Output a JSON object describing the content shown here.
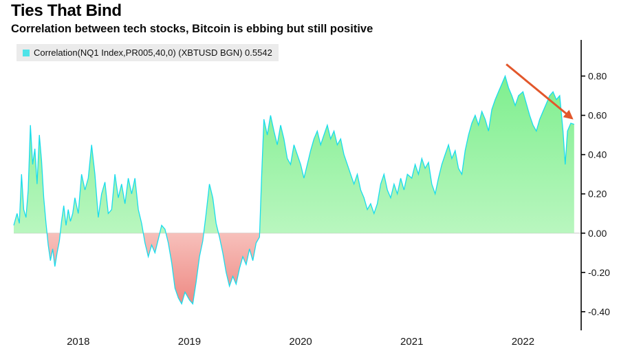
{
  "header": {
    "title": "Ties That Bind",
    "subtitle": "Correlation between tech stocks, Bitcoin is ebbing but still positive"
  },
  "legend": {
    "swatch_color": "#4fe3e8",
    "label": "Correlation(NQ1 Index,PR005,40,0) (XBTUSD BGN) 0.5542",
    "background": "#ebebeb"
  },
  "chart_data": {
    "type": "area",
    "title": "Ties That Bind",
    "subtitle": "Correlation between tech stocks, Bitcoin is ebbing but still positive",
    "xlabel": "",
    "ylabel": "",
    "xlim": [
      2017.42,
      2022.48
    ],
    "ylim": [
      -0.495,
      0.97
    ],
    "xticks": [
      2018,
      2019,
      2020,
      2021,
      2022
    ],
    "yticks": [
      0.8,
      0.6,
      0.4,
      0.2,
      0.0,
      -0.2,
      -0.4
    ],
    "grid": false,
    "legend_position": "top-left",
    "colors": {
      "line": "#18dcec",
      "area_positive_top": "#7eef8e",
      "area_positive_bottom": "#b9f6bf",
      "area_negative_top": "#f7c0bb",
      "area_negative_bottom": "#ee8a84",
      "annotation_arrow": "#e2572b",
      "axis_line": "#000000",
      "zero_line": "#c8c8c8",
      "text": "#151515"
    },
    "annotation": {
      "type": "arrow",
      "from": {
        "x": 2021.85,
        "y": 0.86
      },
      "to": {
        "x": 2022.44,
        "y": 0.585
      }
    },
    "series": [
      {
        "name": "Correlation(NQ1 Index,PR005,40,0) (XBTUSD BGN)",
        "last_value": 0.5542,
        "points": [
          [
            2017.42,
            0.04
          ],
          [
            2017.45,
            0.1
          ],
          [
            2017.47,
            0.05
          ],
          [
            2017.49,
            0.3
          ],
          [
            2017.51,
            0.12
          ],
          [
            2017.53,
            0.08
          ],
          [
            2017.55,
            0.22
          ],
          [
            2017.57,
            0.55
          ],
          [
            2017.59,
            0.35
          ],
          [
            2017.61,
            0.43
          ],
          [
            2017.63,
            0.25
          ],
          [
            2017.65,
            0.5
          ],
          [
            2017.67,
            0.37
          ],
          [
            2017.69,
            0.18
          ],
          [
            2017.71,
            0.05
          ],
          [
            2017.73,
            -0.06
          ],
          [
            2017.75,
            -0.14
          ],
          [
            2017.77,
            -0.08
          ],
          [
            2017.79,
            -0.17
          ],
          [
            2017.81,
            -0.1
          ],
          [
            2017.83,
            -0.04
          ],
          [
            2017.85,
            0.06
          ],
          [
            2017.87,
            0.14
          ],
          [
            2017.89,
            0.04
          ],
          [
            2017.91,
            0.12
          ],
          [
            2017.93,
            0.06
          ],
          [
            2017.95,
            0.1
          ],
          [
            2017.97,
            0.18
          ],
          [
            2018.0,
            0.1
          ],
          [
            2018.03,
            0.3
          ],
          [
            2018.06,
            0.22
          ],
          [
            2018.09,
            0.28
          ],
          [
            2018.12,
            0.45
          ],
          [
            2018.15,
            0.3
          ],
          [
            2018.18,
            0.08
          ],
          [
            2018.21,
            0.2
          ],
          [
            2018.24,
            0.26
          ],
          [
            2018.27,
            0.1
          ],
          [
            2018.3,
            0.12
          ],
          [
            2018.33,
            0.3
          ],
          [
            2018.36,
            0.18
          ],
          [
            2018.39,
            0.25
          ],
          [
            2018.42,
            0.15
          ],
          [
            2018.45,
            0.28
          ],
          [
            2018.48,
            0.2
          ],
          [
            2018.51,
            0.28
          ],
          [
            2018.54,
            0.12
          ],
          [
            2018.57,
            0.05
          ],
          [
            2018.6,
            -0.05
          ],
          [
            2018.63,
            -0.12
          ],
          [
            2018.66,
            -0.06
          ],
          [
            2018.69,
            -0.1
          ],
          [
            2018.72,
            -0.03
          ],
          [
            2018.75,
            0.04
          ],
          [
            2018.78,
            0.02
          ],
          [
            2018.81,
            -0.05
          ],
          [
            2018.84,
            -0.15
          ],
          [
            2018.87,
            -0.28
          ],
          [
            2018.9,
            -0.33
          ],
          [
            2018.93,
            -0.36
          ],
          [
            2018.96,
            -0.3
          ],
          [
            2019.0,
            -0.34
          ],
          [
            2019.03,
            -0.36
          ],
          [
            2019.06,
            -0.25
          ],
          [
            2019.09,
            -0.12
          ],
          [
            2019.12,
            -0.04
          ],
          [
            2019.15,
            0.1
          ],
          [
            2019.18,
            0.25
          ],
          [
            2019.21,
            0.18
          ],
          [
            2019.24,
            0.05
          ],
          [
            2019.27,
            -0.02
          ],
          [
            2019.3,
            -0.1
          ],
          [
            2019.33,
            -0.2
          ],
          [
            2019.36,
            -0.27
          ],
          [
            2019.39,
            -0.22
          ],
          [
            2019.42,
            -0.26
          ],
          [
            2019.45,
            -0.18
          ],
          [
            2019.48,
            -0.12
          ],
          [
            2019.51,
            -0.16
          ],
          [
            2019.54,
            -0.08
          ],
          [
            2019.57,
            -0.14
          ],
          [
            2019.6,
            -0.05
          ],
          [
            2019.63,
            -0.02
          ],
          [
            2019.65,
            0.3
          ],
          [
            2019.67,
            0.58
          ],
          [
            2019.7,
            0.5
          ],
          [
            2019.73,
            0.6
          ],
          [
            2019.76,
            0.52
          ],
          [
            2019.79,
            0.45
          ],
          [
            2019.82,
            0.55
          ],
          [
            2019.85,
            0.48
          ],
          [
            2019.88,
            0.38
          ],
          [
            2019.91,
            0.35
          ],
          [
            2019.94,
            0.45
          ],
          [
            2019.97,
            0.4
          ],
          [
            2020.0,
            0.35
          ],
          [
            2020.03,
            0.28
          ],
          [
            2020.06,
            0.35
          ],
          [
            2020.09,
            0.42
          ],
          [
            2020.12,
            0.48
          ],
          [
            2020.15,
            0.52
          ],
          [
            2020.18,
            0.45
          ],
          [
            2020.21,
            0.5
          ],
          [
            2020.24,
            0.55
          ],
          [
            2020.27,
            0.48
          ],
          [
            2020.3,
            0.52
          ],
          [
            2020.33,
            0.45
          ],
          [
            2020.36,
            0.48
          ],
          [
            2020.39,
            0.4
          ],
          [
            2020.42,
            0.35
          ],
          [
            2020.45,
            0.3
          ],
          [
            2020.48,
            0.25
          ],
          [
            2020.51,
            0.3
          ],
          [
            2020.54,
            0.22
          ],
          [
            2020.57,
            0.18
          ],
          [
            2020.6,
            0.12
          ],
          [
            2020.63,
            0.15
          ],
          [
            2020.66,
            0.1
          ],
          [
            2020.69,
            0.15
          ],
          [
            2020.72,
            0.25
          ],
          [
            2020.75,
            0.3
          ],
          [
            2020.78,
            0.22
          ],
          [
            2020.81,
            0.18
          ],
          [
            2020.84,
            0.25
          ],
          [
            2020.87,
            0.2
          ],
          [
            2020.9,
            0.28
          ],
          [
            2020.93,
            0.22
          ],
          [
            2020.96,
            0.3
          ],
          [
            2021.0,
            0.28
          ],
          [
            2021.03,
            0.35
          ],
          [
            2021.06,
            0.3
          ],
          [
            2021.09,
            0.38
          ],
          [
            2021.12,
            0.33
          ],
          [
            2021.15,
            0.36
          ],
          [
            2021.18,
            0.25
          ],
          [
            2021.21,
            0.2
          ],
          [
            2021.24,
            0.28
          ],
          [
            2021.27,
            0.35
          ],
          [
            2021.3,
            0.4
          ],
          [
            2021.33,
            0.45
          ],
          [
            2021.36,
            0.38
          ],
          [
            2021.39,
            0.42
          ],
          [
            2021.42,
            0.33
          ],
          [
            2021.45,
            0.3
          ],
          [
            2021.48,
            0.42
          ],
          [
            2021.51,
            0.5
          ],
          [
            2021.54,
            0.56
          ],
          [
            2021.57,
            0.6
          ],
          [
            2021.6,
            0.55
          ],
          [
            2021.63,
            0.62
          ],
          [
            2021.66,
            0.58
          ],
          [
            2021.69,
            0.52
          ],
          [
            2021.72,
            0.63
          ],
          [
            2021.75,
            0.68
          ],
          [
            2021.78,
            0.72
          ],
          [
            2021.81,
            0.76
          ],
          [
            2021.84,
            0.8
          ],
          [
            2021.87,
            0.74
          ],
          [
            2021.9,
            0.7
          ],
          [
            2021.93,
            0.65
          ],
          [
            2021.96,
            0.7
          ],
          [
            2022.0,
            0.72
          ],
          [
            2022.03,
            0.66
          ],
          [
            2022.06,
            0.6
          ],
          [
            2022.09,
            0.55
          ],
          [
            2022.12,
            0.52
          ],
          [
            2022.15,
            0.58
          ],
          [
            2022.18,
            0.62
          ],
          [
            2022.21,
            0.66
          ],
          [
            2022.24,
            0.7
          ],
          [
            2022.27,
            0.72
          ],
          [
            2022.3,
            0.68
          ],
          [
            2022.33,
            0.7
          ],
          [
            2022.36,
            0.52
          ],
          [
            2022.38,
            0.35
          ],
          [
            2022.4,
            0.52
          ],
          [
            2022.43,
            0.56
          ],
          [
            2022.46,
            0.5542
          ]
        ]
      }
    ]
  }
}
